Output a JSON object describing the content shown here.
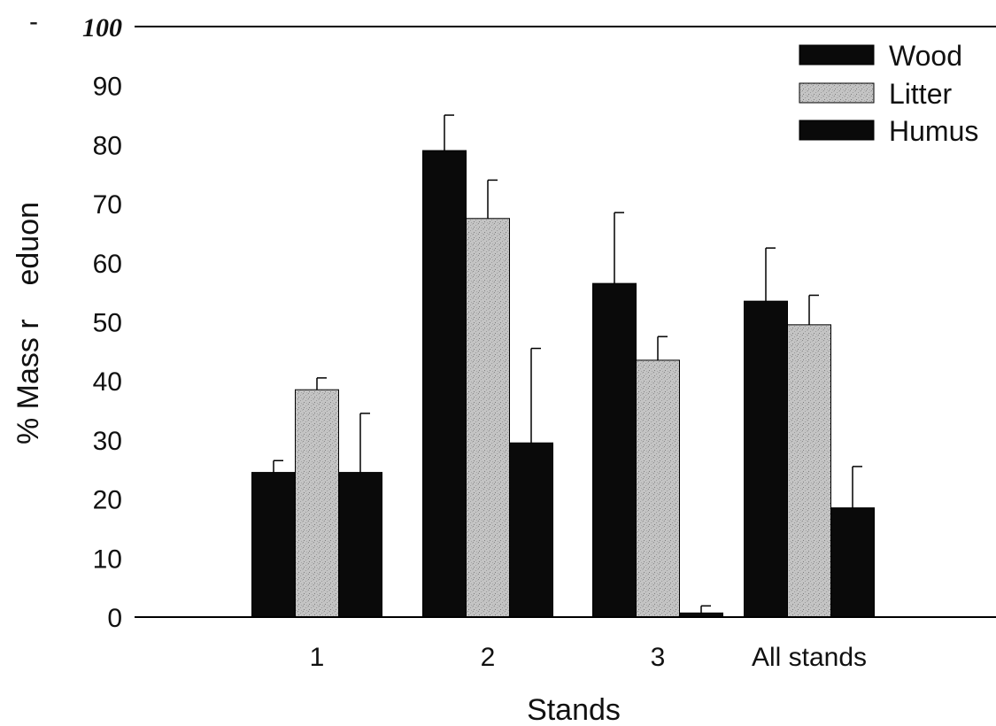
{
  "chart_data": {
    "type": "bar",
    "title": "",
    "xlabel": "Stands",
    "ylabel": "% Mass r    eduon",
    "ylim": [
      0,
      100
    ],
    "yticks": [
      "0",
      "10",
      "20",
      "30",
      "40",
      "50",
      "60",
      "70",
      "80",
      "90",
      "100"
    ],
    "categories": [
      "1",
      "2",
      "3",
      "All stands"
    ],
    "series": [
      {
        "name": "Wood",
        "values": [
          24.5,
          79,
          56.5,
          53.5
        ],
        "errors": [
          2,
          6,
          12,
          9
        ],
        "color": "#0a0a0a",
        "pattern": "solid"
      },
      {
        "name": "Litter",
        "values": [
          38.5,
          67.5,
          43.5,
          49.5
        ],
        "errors": [
          2,
          6.5,
          4,
          5
        ],
        "color": "#b8b8b8",
        "pattern": "speckle"
      },
      {
        "name": "Humus",
        "values": [
          24.5,
          29.5,
          0.7,
          18.5
        ],
        "errors": [
          10,
          16,
          1.2,
          7
        ],
        "color": "#0a0a0a",
        "pattern": "solid"
      }
    ],
    "legend_position": "top-right",
    "grid": false,
    "top_left_mark": "-"
  }
}
